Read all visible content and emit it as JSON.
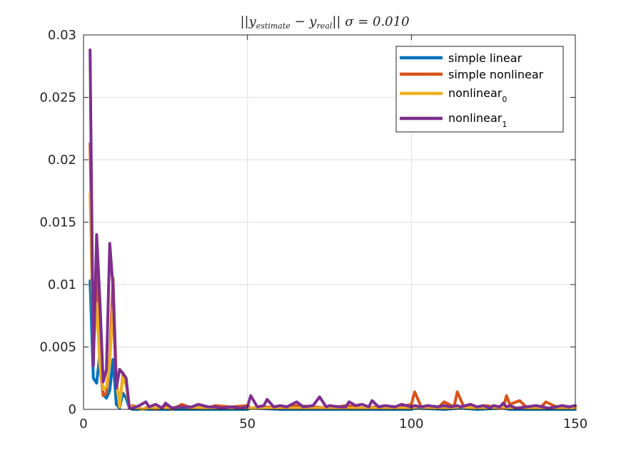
{
  "chart_data": {
    "type": "line",
    "title": "||y_estimate − y_real|| σ = 0.010",
    "title_parts": {
      "prefix": "||y",
      "est_sub": "estimate",
      "minus": " − y",
      "real_sub": "real",
      "suffix": "|| σ = 0.010"
    },
    "xlim": [
      0,
      150
    ],
    "ylim": [
      0,
      0.03
    ],
    "xticks": [
      0,
      50,
      100,
      150
    ],
    "xtick_labels": [
      "0",
      "50",
      "100",
      "150"
    ],
    "yticks": [
      0,
      0.005,
      0.01,
      0.015,
      0.02,
      0.025,
      0.03
    ],
    "ytick_labels": [
      "0",
      "0.005",
      "0.01",
      "0.015",
      "0.02",
      "0.025",
      "0.03"
    ],
    "grid": true,
    "legend_position": "top-right",
    "series": [
      {
        "name": "simple linear",
        "color": "#0072BD",
        "x": [
          2,
          3,
          4,
          5,
          6,
          7,
          8,
          9,
          10,
          11,
          12,
          13,
          14,
          15,
          20,
          30,
          40,
          50,
          51,
          60,
          70,
          80,
          90,
          100,
          101,
          110,
          115,
          120,
          128,
          130,
          140,
          150
        ],
        "y": [
          0.0103,
          0.0025,
          0.0021,
          0.0045,
          0.0012,
          0.0009,
          0.0015,
          0.004,
          0.0004,
          0.0001,
          0.0013,
          0.0009,
          0.0001,
          0.0,
          0.0,
          0.0,
          0.0,
          0.0,
          0.0001,
          0.0,
          0.0,
          0.0,
          0.0,
          0.0,
          0.0001,
          0.0,
          0.0001,
          0.0,
          0.0001,
          0.0,
          0.0,
          0.0
        ]
      },
      {
        "name": "simple nonlinear",
        "color": "#D95319",
        "x": [
          2,
          3,
          4,
          5,
          6,
          7,
          8,
          9,
          10,
          11,
          12,
          13,
          14,
          15,
          18,
          20,
          22,
          25,
          27,
          30,
          33,
          35,
          38,
          40,
          45,
          50,
          51,
          55,
          60,
          65,
          70,
          75,
          80,
          85,
          90,
          95,
          100,
          101,
          103,
          105,
          108,
          110,
          113,
          114,
          116,
          118,
          120,
          123,
          125,
          128,
          129,
          130,
          133,
          135,
          138,
          140,
          141,
          145,
          150
        ],
        "y": [
          0.0213,
          0.0068,
          0.0118,
          0.0035,
          0.0011,
          0.0013,
          0.004,
          0.0105,
          0.0024,
          0.0002,
          0.0028,
          0.0021,
          0.0001,
          0.0003,
          0.0,
          0.0002,
          0.0,
          0.0003,
          0.0,
          0.0004,
          0.0001,
          0.0002,
          0.0001,
          0.0003,
          0.0002,
          0.0003,
          0.0001,
          0.0002,
          0.0001,
          0.0003,
          0.0002,
          0.0001,
          0.0003,
          0.0001,
          0.0002,
          0.0001,
          0.0004,
          0.0014,
          0.0002,
          0.0003,
          0.0001,
          0.0006,
          0.0002,
          0.0014,
          0.0002,
          0.0004,
          0.0001,
          0.0003,
          0.0002,
          0.0001,
          0.0011,
          0.0004,
          0.0007,
          0.0002,
          0.0001,
          0.0003,
          0.0006,
          0.0001,
          0.0002
        ]
      },
      {
        "name": "nonlinear_0",
        "color": "#EDB120",
        "x": [
          2,
          3,
          4,
          5,
          6,
          7,
          8,
          9,
          10,
          11,
          12,
          13,
          14,
          15,
          18,
          20,
          25,
          30,
          40,
          50,
          51,
          60,
          70,
          80,
          90,
          100,
          101,
          110,
          115,
          120,
          128,
          130,
          140,
          150
        ],
        "y": [
          0.0173,
          0.0048,
          0.0085,
          0.0035,
          0.0016,
          0.0018,
          0.0038,
          0.0082,
          0.0023,
          0.0002,
          0.0026,
          0.0019,
          0.0001,
          0.0002,
          0.0,
          0.0001,
          0.0001,
          0.0002,
          0.0001,
          0.0001,
          0.0001,
          0.0001,
          0.0001,
          0.0001,
          0.0001,
          0.0001,
          0.0002,
          0.0001,
          0.0002,
          0.0001,
          0.0002,
          0.0001,
          0.0001,
          0.0001
        ]
      },
      {
        "name": "nonlinear_1",
        "color": "#7E2F8E",
        "x": [
          2,
          3,
          4,
          5,
          6,
          7,
          8,
          9,
          10,
          11,
          12,
          13,
          14,
          15,
          17,
          19,
          20,
          22,
          24,
          25,
          27,
          29,
          30,
          33,
          35,
          38,
          40,
          42,
          45,
          48,
          50,
          51,
          53,
          55,
          56,
          58,
          60,
          62,
          65,
          67,
          70,
          72,
          74,
          75,
          78,
          80,
          81,
          83,
          85,
          87,
          88,
          90,
          92,
          95,
          97,
          100,
          101,
          103,
          105,
          108,
          110,
          112,
          114,
          115,
          118,
          120,
          122,
          124,
          125,
          127,
          128,
          129,
          130,
          132,
          135,
          138,
          140,
          142,
          144,
          146,
          148,
          150
        ],
        "y": [
          0.0288,
          0.0035,
          0.014,
          0.0087,
          0.0022,
          0.0032,
          0.0133,
          0.0098,
          0.0017,
          0.0032,
          0.0029,
          0.0025,
          0.0001,
          0.0001,
          0.0003,
          0.0006,
          0.0002,
          0.0004,
          0.0001,
          0.0005,
          0.0001,
          0.0002,
          0.0002,
          0.0002,
          0.0004,
          0.0002,
          0.0002,
          0.0001,
          0.0002,
          0.0001,
          0.0002,
          0.0011,
          0.0002,
          0.0003,
          0.0008,
          0.0002,
          0.0003,
          0.0002,
          0.0006,
          0.0002,
          0.0003,
          0.001,
          0.0002,
          0.0003,
          0.0002,
          0.0002,
          0.0006,
          0.0003,
          0.0004,
          0.0002,
          0.0007,
          0.0002,
          0.0003,
          0.0002,
          0.0004,
          0.0002,
          0.0003,
          0.0002,
          0.0003,
          0.0002,
          0.0003,
          0.0002,
          0.0003,
          0.0002,
          0.0004,
          0.0002,
          0.0003,
          0.0001,
          0.0003,
          0.0002,
          0.0005,
          0.0002,
          0.0003,
          0.0001,
          0.0002,
          0.0003,
          0.0002,
          0.0001,
          0.0002,
          0.0003,
          0.0002,
          0.0003
        ]
      }
    ]
  },
  "legend": {
    "items": [
      {
        "label": "simple linear",
        "sub": ""
      },
      {
        "label": "simple nonlinear",
        "sub": ""
      },
      {
        "label": "nonlinear",
        "sub": "0"
      },
      {
        "label": "nonlinear",
        "sub": "1"
      }
    ]
  }
}
